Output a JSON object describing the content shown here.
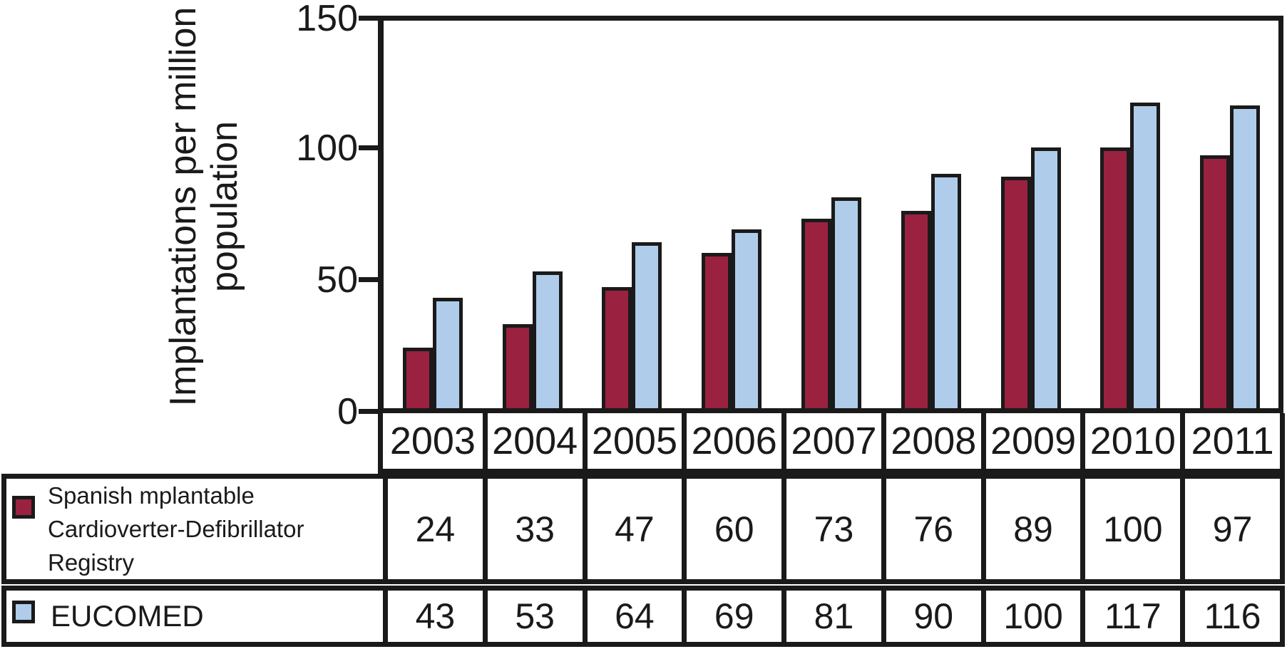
{
  "chart_data": {
    "type": "bar",
    "title": "",
    "ylabel": "Implantations per million population",
    "ylabel_lines": [
      "Implantations per million",
      "population"
    ],
    "categories": [
      "2003",
      "2004",
      "2005",
      "2006",
      "2007",
      "2008",
      "2009",
      "2010",
      "2011"
    ],
    "series": [
      {
        "name": "Spanish mplantable Cardioverter-Defibrillator Registry",
        "label_lines": [
          "Spanish mplantable",
          "Cardioverter-Defibrillator",
          "Registry"
        ],
        "color": "#9A2240",
        "values": [
          24,
          33,
          47,
          60,
          73,
          76,
          89,
          100,
          97
        ]
      },
      {
        "name": "EUCOMED",
        "label_lines": [
          "EUCOMED"
        ],
        "color": "#AFCDEB",
        "values": [
          43,
          53,
          64,
          69,
          81,
          90,
          100,
          117,
          116
        ]
      }
    ],
    "y_ticks": [
      0,
      50,
      100,
      150
    ],
    "ylim": [
      0,
      150
    ],
    "grid": false,
    "legend_position": "table-left",
    "bar_outline_color": "#1A1A1A"
  }
}
